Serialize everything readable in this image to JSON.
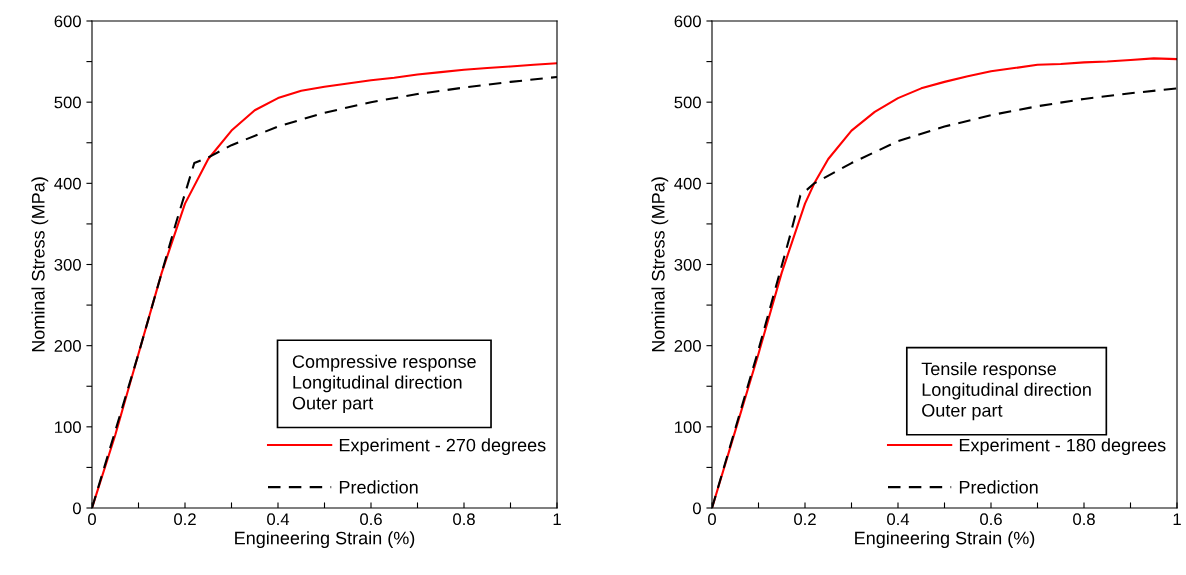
{
  "chart_data": [
    {
      "type": "line",
      "xlabel": "Engineering Strain (%)",
      "ylabel": "Nominal Stress (MPa)",
      "annotations": [
        "Compressive response\nLongitudinal direction\nOuter part"
      ],
      "xlim": [
        0,
        1
      ],
      "ylim": [
        0,
        600
      ],
      "xticks": [
        0,
        {
          "value": 0.1,
          "label": null
        },
        0.2,
        {
          "value": 0.3,
          "label": null
        },
        0.4,
        {
          "value": 0.5,
          "label": null
        },
        0.6,
        {
          "value": 0.7,
          "label": null
        },
        0.8,
        {
          "value": 0.9,
          "label": null
        },
        1
      ],
      "yticks": [
        0,
        {
          "value": 50,
          "label": null
        },
        100,
        {
          "value": 150,
          "label": null
        },
        200,
        {
          "value": 250,
          "label": null
        },
        300,
        {
          "value": 350,
          "label": null
        },
        400,
        {
          "value": 450,
          "label": null
        },
        500,
        {
          "value": 550,
          "label": null
        },
        600
      ],
      "grid": false,
      "legend": "bottom right",
      "series": [
        {
          "name": "Experiment - 270 degrees",
          "color": "#ff0000",
          "line_style": "solid",
          "x": [
            0,
            0.05,
            0.1,
            0.15,
            0.2,
            0.25,
            0.3,
            0.35,
            0.4,
            0.45,
            0.5,
            0.55,
            0.6,
            0.65,
            0.7,
            0.75,
            0.8,
            0.85,
            0.9,
            0.95,
            1.0
          ],
          "values": [
            0,
            90,
            190,
            290,
            375,
            430,
            465,
            490,
            505,
            514,
            519,
            523,
            527,
            530,
            534,
            537,
            540,
            542,
            544,
            546,
            548
          ]
        },
        {
          "name": "Prediction",
          "color": "#000000",
          "line_style": "dashed",
          "x": [
            0,
            0.1,
            0.18,
            0.22,
            0.25,
            0.3,
            0.4,
            0.5,
            0.6,
            0.7,
            0.8,
            0.9,
            1.0
          ],
          "values": [
            0,
            190,
            350,
            425,
            432,
            447,
            470,
            487,
            500,
            510,
            518,
            525,
            531
          ]
        }
      ]
    },
    {
      "type": "line",
      "xlabel": "Engineering Strain (%)",
      "ylabel": "Nominal Stress (MPa)",
      "annotations": [
        "Tensile response\nLongitudinal direction\nOuter part"
      ],
      "xlim": [
        0,
        1
      ],
      "ylim": [
        0,
        600
      ],
      "xticks": [
        0,
        {
          "value": 0.1,
          "label": null
        },
        0.2,
        {
          "value": 0.3,
          "label": null
        },
        0.4,
        {
          "value": 0.5,
          "label": null
        },
        0.6,
        {
          "value": 0.7,
          "label": null
        },
        0.8,
        {
          "value": 0.9,
          "label": null
        },
        1
      ],
      "yticks": [
        0,
        {
          "value": 50,
          "label": null
        },
        100,
        {
          "value": 150,
          "label": null
        },
        200,
        {
          "value": 250,
          "label": null
        },
        300,
        {
          "value": 350,
          "label": null
        },
        400,
        {
          "value": 450,
          "label": null
        },
        500,
        {
          "value": 550,
          "label": null
        },
        600
      ],
      "grid": false,
      "legend": "bottom right",
      "series": [
        {
          "name": "Experiment - 180 degrees",
          "color": "#ff0000",
          "line_style": "solid",
          "x": [
            0,
            0.05,
            0.1,
            0.15,
            0.2,
            0.22,
            0.25,
            0.3,
            0.35,
            0.4,
            0.45,
            0.5,
            0.55,
            0.6,
            0.65,
            0.7,
            0.75,
            0.8,
            0.85,
            0.9,
            0.95,
            1.0
          ],
          "values": [
            0,
            95,
            190,
            290,
            375,
            400,
            430,
            465,
            488,
            505,
            517,
            525,
            532,
            538,
            542,
            546,
            547,
            549,
            550,
            552,
            554,
            553
          ]
        },
        {
          "name": "Prediction",
          "color": "#000000",
          "line_style": "dashed",
          "x": [
            0,
            0.1,
            0.17,
            0.19,
            0.22,
            0.3,
            0.4,
            0.5,
            0.6,
            0.7,
            0.8,
            0.9,
            1.0
          ],
          "values": [
            0,
            195,
            340,
            385,
            400,
            425,
            452,
            470,
            484,
            495,
            504,
            511,
            517
          ]
        }
      ]
    }
  ]
}
